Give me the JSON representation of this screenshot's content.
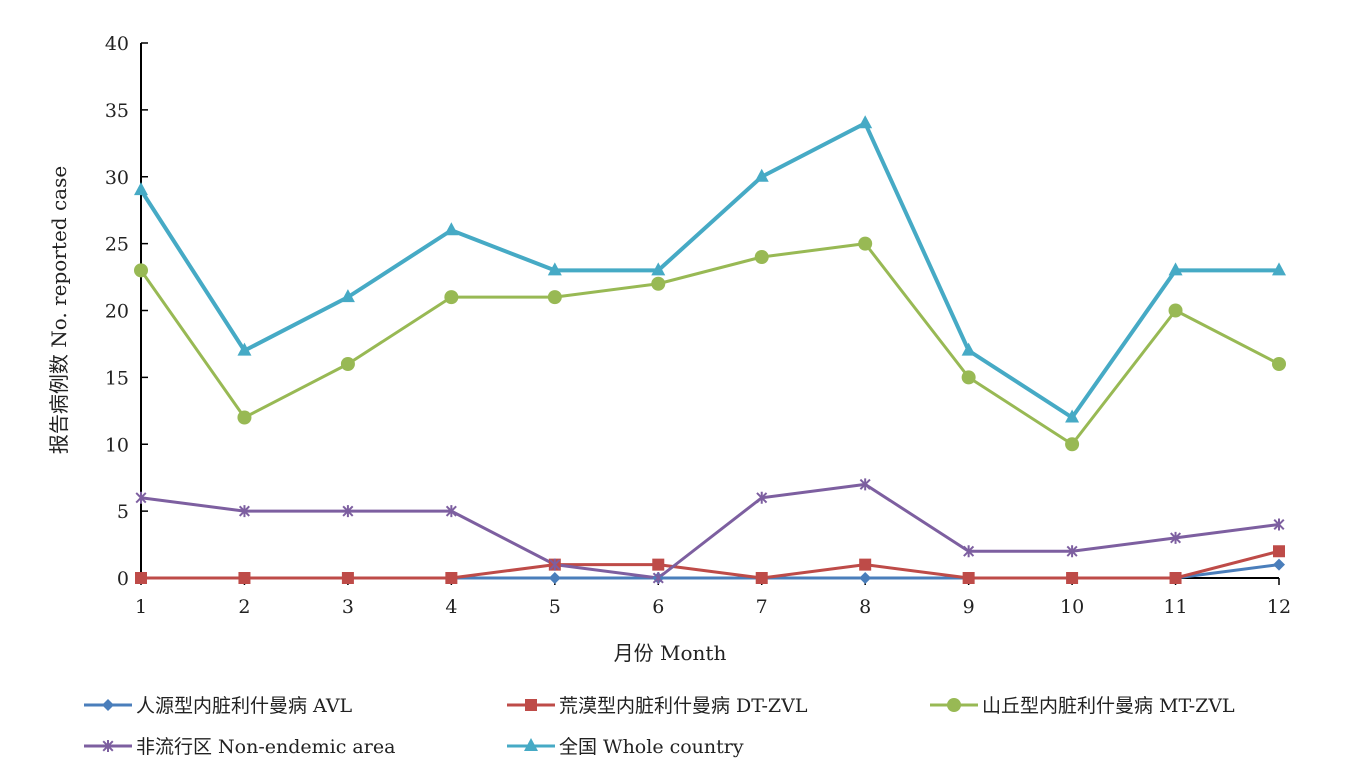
{
  "chart_data": {
    "type": "line",
    "xlabel": "月份 Month",
    "ylabel": "报告病例数 No. reported case",
    "x": [
      1,
      2,
      3,
      4,
      5,
      6,
      7,
      8,
      9,
      10,
      11,
      12
    ],
    "ylim": [
      0,
      40
    ],
    "yticks": [
      0,
      5,
      10,
      15,
      20,
      25,
      30,
      35,
      40
    ],
    "grid": false,
    "legend_position": "bottom",
    "series": [
      {
        "name": "人源型内脏利什曼病 AVL",
        "marker": "diamond",
        "color": "#4a7ebb",
        "values": [
          0,
          0,
          0,
          0,
          0,
          0,
          0,
          0,
          0,
          0,
          0,
          1
        ]
      },
      {
        "name": "荒漠型内脏利什曼病 DT-ZVL",
        "marker": "square",
        "color": "#be4b48",
        "values": [
          0,
          0,
          0,
          0,
          1,
          1,
          0,
          1,
          0,
          0,
          0,
          2
        ]
      },
      {
        "name": "山丘型内脏利什曼病 MT-ZVL",
        "marker": "circle",
        "color": "#98b954",
        "values": [
          23,
          12,
          16,
          21,
          21,
          22,
          24,
          25,
          15,
          10,
          20,
          16
        ]
      },
      {
        "name": "非流行区 Non-endemic area",
        "marker": "star",
        "color": "#7d5fa0",
        "values": [
          6,
          5,
          5,
          5,
          1,
          0,
          6,
          7,
          2,
          2,
          3,
          4
        ]
      },
      {
        "name": "全国 Whole country",
        "marker": "triangle",
        "color": "#46aac5",
        "values": [
          29,
          17,
          21,
          26,
          23,
          23,
          30,
          34,
          17,
          12,
          23,
          23
        ]
      }
    ]
  }
}
